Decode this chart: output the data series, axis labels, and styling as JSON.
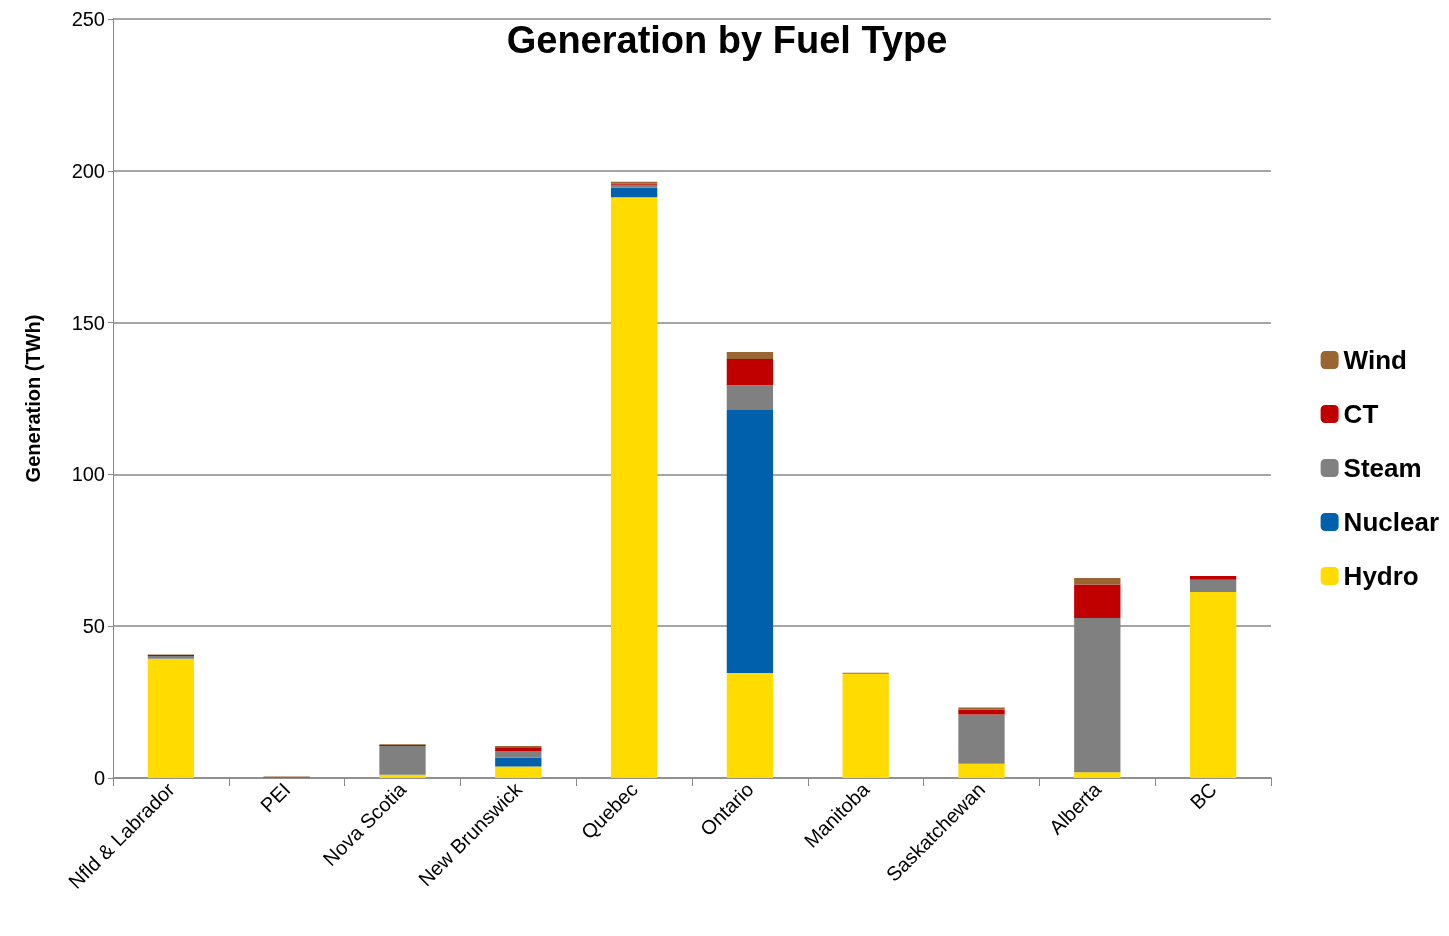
{
  "chart_data": {
    "type": "bar",
    "title": "Generation by Fuel Type",
    "ylabel": "Generation (TWh)",
    "categories": [
      "Nfld & Labrador",
      "PEI",
      "Nova Scotia",
      "New Brunswick",
      "Quebec",
      "Ontario",
      "Manitoba",
      "Saskatchewan",
      "Alberta",
      "BC"
    ],
    "series": [
      {
        "name": "Hydro",
        "color": "#ffdb00",
        "values": [
          39.3,
          0,
          1.1,
          3.8,
          191.3,
          34.6,
          34.3,
          4.7,
          1.9,
          61.3
        ]
      },
      {
        "name": "Nuclear",
        "color": "#0060ac",
        "values": [
          0,
          0,
          0,
          2.9,
          3.1,
          86.6,
          0,
          0,
          0,
          0
        ]
      },
      {
        "name": "Steam",
        "color": "#808080",
        "values": [
          0.9,
          0,
          9.4,
          2.2,
          1.0,
          8.2,
          0,
          16.2,
          50.8,
          4.0
        ]
      },
      {
        "name": "CT",
        "color": "#c00000",
        "values": [
          0.3,
          null,
          0.4,
          1.2,
          0.3,
          8.6,
          0,
          1.6,
          11.0,
          1.2
        ]
      },
      {
        "name": "Wind",
        "color": "#996633",
        "values": [
          0.2,
          0.5,
          0.2,
          0.4,
          0.7,
          2.3,
          0.4,
          0.7,
          2.2,
          0
        ]
      }
    ],
    "stacked": true,
    "ylim": [
      0,
      250
    ],
    "yticks": [
      0,
      50,
      100,
      150,
      200,
      250
    ],
    "grid": "y",
    "legend": "right"
  }
}
